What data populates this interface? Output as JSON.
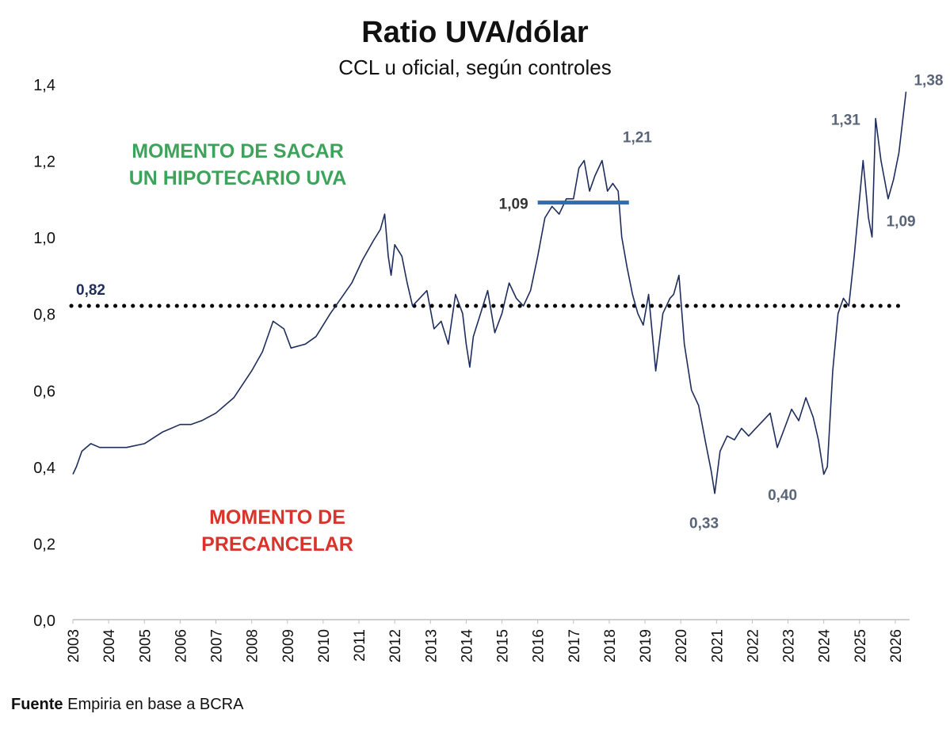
{
  "title": "Ratio UVA/dólar",
  "subtitle": "CCL u oficial, según controles",
  "source": {
    "label": "Fuente",
    "text": " Empiria en base a BCRA"
  },
  "annotations": {
    "buy_zone": [
      "MOMENTO DE SACAR",
      "UN HIPOTECARIO UVA"
    ],
    "prepay_zone": [
      "MOMENTO DE",
      "PRECANCELAR"
    ]
  },
  "chart_data": {
    "type": "line",
    "title": "Ratio UVA/dólar",
    "subtitle": "CCL u oficial, según controles",
    "xlabel": "",
    "ylabel": "",
    "ylim": [
      0,
      1.4
    ],
    "xlim": [
      2003,
      2026.4
    ],
    "grid": false,
    "y_ticks": [
      "0,0",
      "0,2",
      "0,4",
      "0,6",
      "0,8",
      "1,0",
      "1,2",
      "1,4"
    ],
    "x_ticks": [
      "2003",
      "2004",
      "2005",
      "2006",
      "2007",
      "2008",
      "2009",
      "2010",
      "2011",
      "2012",
      "2013",
      "2014",
      "2015",
      "2016",
      "2017",
      "2018",
      "2019",
      "2020",
      "2021",
      "2022",
      "2023",
      "2024",
      "2025",
      "2026"
    ],
    "line_color": "#1f2d5c",
    "series": [
      {
        "x": [
          2003.0,
          2003.1,
          2003.25,
          2003.5,
          2003.75,
          2004.0,
          2004.5,
          2005.0,
          2005.5,
          2006.0,
          2006.3,
          2006.6,
          2007.0,
          2007.5,
          2008.0,
          2008.3,
          2008.6,
          2008.9,
          2009.1,
          2009.5,
          2009.8,
          2010.2,
          2010.5,
          2010.8,
          2011.1,
          2011.4,
          2011.6,
          2011.72,
          2011.82,
          2011.9,
          2012.0,
          2012.2,
          2012.35,
          2012.5,
          2012.7,
          2012.9,
          2013.1,
          2013.3,
          2013.5,
          2013.7,
          2013.9,
          2014.0,
          2014.1,
          2014.2,
          2014.4,
          2014.6,
          2014.8,
          2015.0,
          2015.2,
          2015.4,
          2015.6,
          2015.8,
          2016.0,
          2016.2,
          2016.4,
          2016.6,
          2016.8,
          2017.0,
          2017.15,
          2017.3,
          2017.45,
          2017.6,
          2017.8,
          2017.95,
          2018.1,
          2018.25,
          2018.35,
          2018.5,
          2018.65,
          2018.8,
          2018.95,
          2019.1,
          2019.3,
          2019.5,
          2019.7,
          2019.8,
          2019.95,
          2020.1,
          2020.3,
          2020.5,
          2020.7,
          2020.85,
          2020.95,
          2021.1,
          2021.3,
          2021.5,
          2021.7,
          2021.9,
          2022.1,
          2022.3,
          2022.5,
          2022.7,
          2022.9,
          2023.1,
          2023.3,
          2023.5,
          2023.7,
          2023.85,
          2024.0,
          2024.1,
          2024.25,
          2024.4,
          2024.55,
          2024.7,
          2024.85,
          2025.0,
          2025.1,
          2025.25,
          2025.35,
          2025.45,
          2025.6,
          2025.8,
          2025.95,
          2026.1,
          2026.2,
          2026.3
        ],
        "values": [
          0.38,
          0.4,
          0.44,
          0.46,
          0.45,
          0.45,
          0.45,
          0.46,
          0.49,
          0.51,
          0.51,
          0.52,
          0.54,
          0.58,
          0.65,
          0.7,
          0.78,
          0.76,
          0.71,
          0.72,
          0.74,
          0.8,
          0.84,
          0.88,
          0.94,
          0.99,
          1.02,
          1.06,
          0.95,
          0.9,
          0.98,
          0.95,
          0.88,
          0.82,
          0.84,
          0.86,
          0.76,
          0.78,
          0.72,
          0.85,
          0.8,
          0.72,
          0.66,
          0.74,
          0.8,
          0.86,
          0.75,
          0.8,
          0.88,
          0.84,
          0.82,
          0.86,
          0.95,
          1.05,
          1.08,
          1.06,
          1.1,
          1.1,
          1.18,
          1.2,
          1.12,
          1.16,
          1.2,
          1.12,
          1.14,
          1.12,
          1.0,
          0.92,
          0.85,
          0.8,
          0.77,
          0.85,
          0.65,
          0.8,
          0.84,
          0.85,
          0.9,
          0.72,
          0.6,
          0.56,
          0.46,
          0.39,
          0.33,
          0.44,
          0.48,
          0.47,
          0.5,
          0.48,
          0.5,
          0.52,
          0.54,
          0.45,
          0.5,
          0.55,
          0.52,
          0.58,
          0.53,
          0.47,
          0.38,
          0.4,
          0.65,
          0.8,
          0.84,
          0.82,
          0.95,
          1.1,
          1.2,
          1.05,
          1.0,
          1.31,
          1.2,
          1.1,
          1.15,
          1.22,
          1.3,
          1.38
        ]
      }
    ],
    "reference_line": {
      "value": 0.82,
      "label": "0,82"
    },
    "segment": {
      "x0": 2016.0,
      "x1": 2018.55,
      "value": 1.09,
      "label": "1,09"
    },
    "point_labels": [
      {
        "x": 2016.0,
        "value": 1.09,
        "text": "1,09"
      },
      {
        "x": 2017.8,
        "value": 1.21,
        "text": "1,21"
      },
      {
        "x": 2020.95,
        "value": 0.33,
        "text": "0,33"
      },
      {
        "x": 2023.1,
        "value": 0.4,
        "text": "0,40"
      },
      {
        "x": 2025.2,
        "value": 1.31,
        "text": "1,31"
      },
      {
        "x": 2025.35,
        "value": 1.09,
        "text": "1,09"
      },
      {
        "x": 2026.3,
        "value": 1.38,
        "text": "1,38"
      }
    ]
  }
}
